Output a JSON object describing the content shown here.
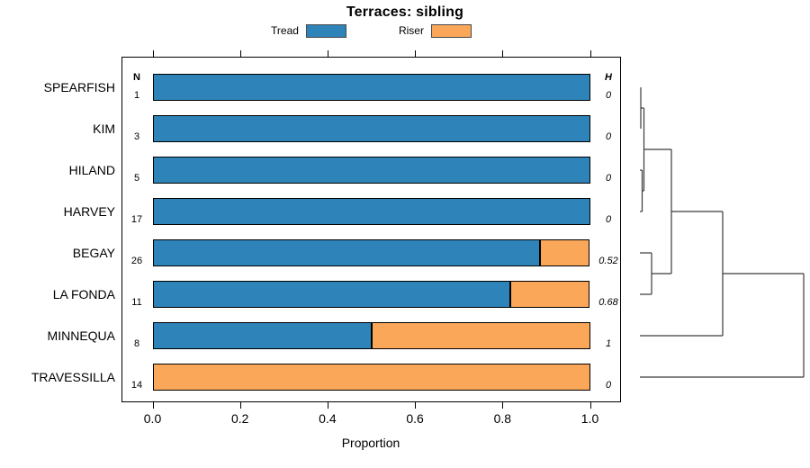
{
  "chart_data": {
    "type": "bar",
    "orientation": "horizontal-stacked",
    "title": "Terraces: sibling",
    "xlabel": "Proportion",
    "xlim": [
      0.0,
      1.0
    ],
    "x_ticks": [
      0.0,
      0.2,
      0.4,
      0.6,
      0.8,
      1.0
    ],
    "x_tick_labels": [
      "0.0",
      "0.2",
      "0.4",
      "0.6",
      "0.8",
      "1.0"
    ],
    "grid": false,
    "legend_position": "top",
    "categories": [
      "SPEARFISH",
      "KIM",
      "HILAND",
      "HARVEY",
      "BEGAY",
      "LA FONDA",
      "MINNEQUA",
      "TRAVESSILLA"
    ],
    "series": [
      {
        "name": "Tread",
        "color": "#2E83B8",
        "values": [
          1.0,
          1.0,
          1.0,
          1.0,
          0.885,
          0.818,
          0.5,
          0.0
        ]
      },
      {
        "name": "Riser",
        "color": "#FAA75A",
        "values": [
          0.0,
          0.0,
          0.0,
          0.0,
          0.115,
          0.182,
          0.5,
          1.0
        ]
      }
    ],
    "n_column": {
      "header": "N",
      "values": [
        "1",
        "3",
        "5",
        "17",
        "26",
        "11",
        "8",
        "14"
      ]
    },
    "h_column": {
      "header": "H",
      "values": [
        "0",
        "0",
        "0",
        "0",
        "0.52",
        "0.68",
        "1",
        "0"
      ]
    },
    "colors": {
      "tread": "#2E83B8",
      "riser": "#FAA75A",
      "border": "#000000",
      "dendrogram_line": "#3a3a3a"
    },
    "dendrogram": {
      "leaf_order": [
        "SPEARFISH",
        "KIM",
        "HILAND",
        "HARVEY",
        "BEGAY",
        "LA FONDA",
        "MINNEQUA",
        "TRAVESSILLA"
      ],
      "segments": [
        [
          712,
          97,
          712,
          143
        ],
        [
          713.5,
          189,
          713.5,
          235
        ],
        [
          715.5,
          120,
          715.5,
          212
        ],
        [
          724,
          281,
          724,
          327
        ],
        [
          746,
          166,
          746,
          304
        ],
        [
          803,
          235,
          803,
          373
        ],
        [
          893,
          304,
          893,
          419
        ],
        [
          711,
          189,
          713.5,
          189
        ],
        [
          711,
          235,
          713.5,
          235
        ],
        [
          712,
          120,
          715.5,
          120
        ],
        [
          713.5,
          212,
          715.5,
          212
        ],
        [
          711,
          281,
          724,
          281
        ],
        [
          711,
          327,
          724,
          327
        ],
        [
          715.5,
          166,
          746,
          166
        ],
        [
          724,
          304,
          746,
          304
        ],
        [
          746,
          235,
          803,
          235
        ],
        [
          711,
          373,
          803,
          373
        ],
        [
          803,
          304,
          893,
          304
        ],
        [
          711,
          419,
          893,
          419
        ]
      ]
    }
  }
}
